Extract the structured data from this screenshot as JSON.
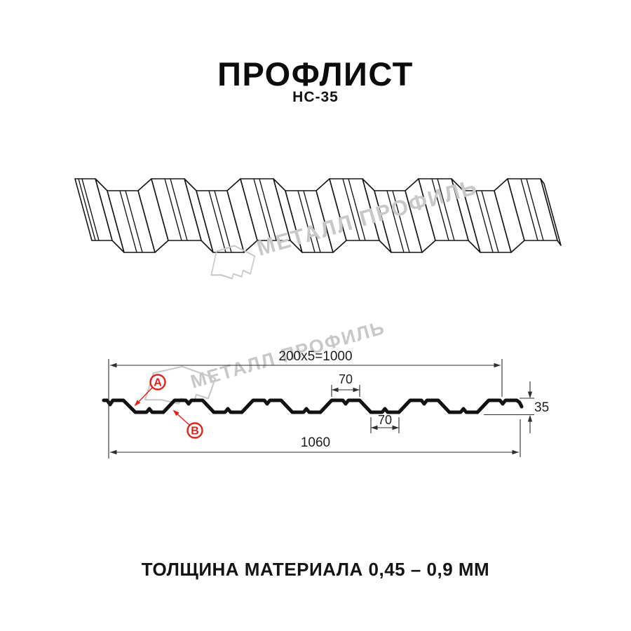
{
  "header": {
    "title": "ПРОФЛИСТ",
    "subtitle": "НС-35"
  },
  "watermark": {
    "brand": "МЕТАЛЛ ПРОФИЛЬ"
  },
  "cross_section": {
    "dims": {
      "top_width": "200x5=1000",
      "crest_width": "70",
      "valley_width": "70",
      "height": "35",
      "full_width": "1060"
    },
    "labels": {
      "a": "A",
      "b": "B"
    }
  },
  "footer": {
    "thickness_note": "ТОЛЩИНА МАТЕРИАЛА 0,45 – 0,9 ММ"
  },
  "colors": {
    "accent_red": "#e3211a",
    "drawing_line": "#161616",
    "profile_black": "#111111",
    "dimension_line": "#2f2f2f",
    "watermark_gray": "#c8c8c8"
  }
}
